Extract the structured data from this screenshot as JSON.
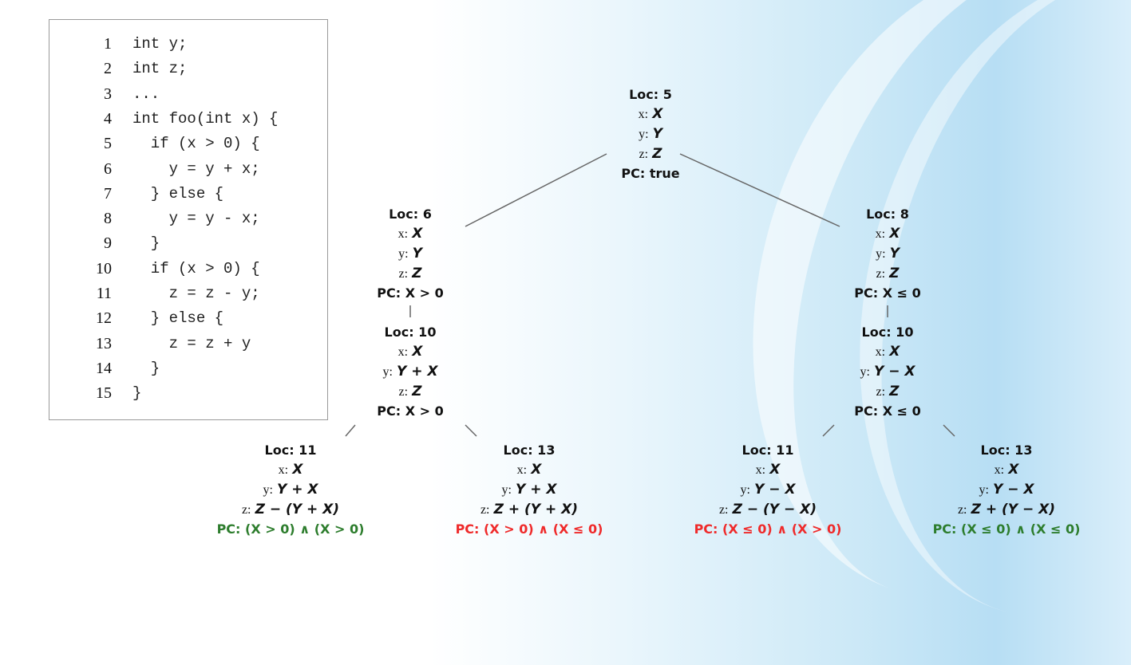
{
  "code": {
    "lines": [
      {
        "num": "1",
        "text": "int y;"
      },
      {
        "num": "2",
        "text": "int z;"
      },
      {
        "num": "3",
        "text": "..."
      },
      {
        "num": "4",
        "text": "int foo(int x) {"
      },
      {
        "num": "5",
        "text": "  if (x > 0) {"
      },
      {
        "num": "6",
        "text": "    y = y + x;"
      },
      {
        "num": "7",
        "text": "  } else {"
      },
      {
        "num": "8",
        "text": "    y = y - x;"
      },
      {
        "num": "9",
        "text": "  }"
      },
      {
        "num": "10",
        "text": "  if (x > 0) {"
      },
      {
        "num": "11",
        "text": "    z = z - y;"
      },
      {
        "num": "12",
        "text": "  } else {"
      },
      {
        "num": "13",
        "text": "    z = z + y"
      },
      {
        "num": "14",
        "text": "  }"
      },
      {
        "num": "15",
        "text": "}"
      }
    ]
  },
  "tree": {
    "root": {
      "loc": "Loc: 5",
      "x_label": "x:",
      "x": "X",
      "y_label": "y:",
      "y": "Y",
      "z_label": "z:",
      "z": "Z",
      "pc": "PC: true"
    },
    "left": {
      "loc": "Loc: 6",
      "x_label": "x:",
      "x": "X",
      "y_label": "y:",
      "y": "Y",
      "z_label": "z:",
      "z": "Z",
      "pc": "PC: X > 0"
    },
    "right": {
      "loc": "Loc: 8",
      "x_label": "x:",
      "x": "X",
      "y_label": "y:",
      "y": "Y",
      "z_label": "z:",
      "z": "Z",
      "pc": "PC: X ≤ 0"
    },
    "left10": {
      "loc": "Loc: 10",
      "x_label": "x:",
      "x": "X",
      "y_label": "y:",
      "y": "Y + X",
      "z_label": "z:",
      "z": "Z",
      "pc": "PC: X > 0"
    },
    "right10": {
      "loc": "Loc: 10",
      "x_label": "x:",
      "x": "X",
      "y_label": "y:",
      "y": "Y − X",
      "z_label": "z:",
      "z": "Z",
      "pc": "PC: X ≤ 0"
    },
    "ll": {
      "loc": "Loc: 11",
      "x_label": "x:",
      "x": "X",
      "y_label": "y:",
      "y": "Y + X",
      "z_label": "z:",
      "z": "Z − (Y + X)",
      "pc": "PC: (X > 0) ∧ (X > 0)"
    },
    "lr": {
      "loc": "Loc: 13",
      "x_label": "x:",
      "x": "X",
      "y_label": "y:",
      "y": "Y + X",
      "z_label": "z:",
      "z": "Z + (Y + X)",
      "pc": "PC: (X > 0) ∧ (X ≤ 0)"
    },
    "rl": {
      "loc": "Loc: 11",
      "x_label": "x:",
      "x": "X",
      "y_label": "y:",
      "y": "Y − X",
      "z_label": "z:",
      "z": "Z − (Y − X)",
      "pc": "PC: (X ≤ 0) ∧ (X > 0)"
    },
    "rr": {
      "loc": "Loc: 13",
      "x_label": "x:",
      "x": "X",
      "y_label": "y:",
      "y": "Y − X",
      "z_label": "z:",
      "z": "Z + (Y − X)",
      "pc": "PC: (X ≤ 0) ∧ (X ≤ 0)"
    }
  },
  "colors": {
    "feasible": "#2d7d2d",
    "infeasible": "#ef2a2a",
    "edge": "#666666"
  }
}
